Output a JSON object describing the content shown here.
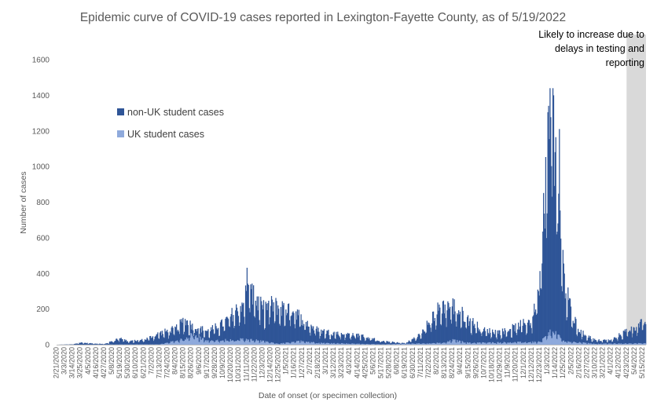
{
  "chart_data": {
    "type": "bar",
    "stacked": true,
    "title": "Epidemic curve of COVID-19 cases reported in Lexington-Fayette County, as of 5/19/2022",
    "xlabel": "Date of onset (or specimen collection)",
    "ylabel": "Number of cases",
    "ylim": [
      0,
      1600
    ],
    "yticks": [
      0,
      200,
      400,
      600,
      800,
      1000,
      1200,
      1400,
      1600
    ],
    "grid": false,
    "legend_position": "upper-left",
    "x_range": [
      "2/21/2020",
      "5/19/2022"
    ],
    "x_tick_labels": [
      "2/21/2020",
      "3/3/2020",
      "3/14/2020",
      "3/25/2020",
      "4/5/2020",
      "4/16/2020",
      "4/27/2020",
      "5/8/2020",
      "5/19/2020",
      "5/30/2020",
      "6/10/2020",
      "6/21/2020",
      "7/2/2020",
      "7/13/2020",
      "7/24/2020",
      "8/4/2020",
      "8/15/2020",
      "8/26/2020",
      "9/6/2020",
      "9/17/2020",
      "9/28/2020",
      "10/9/2020",
      "10/20/2020",
      "10/31/2020",
      "11/11/2020",
      "11/22/2020",
      "12/3/2020",
      "12/14/2020",
      "12/25/2020",
      "1/5/2021",
      "1/16/2021",
      "1/27/2021",
      "2/7/2021",
      "2/18/2021",
      "3/1/2021",
      "3/12/2021",
      "3/23/2021",
      "4/3/2021",
      "4/14/2021",
      "4/25/2021",
      "5/6/2021",
      "5/17/2021",
      "5/28/2021",
      "6/8/2021",
      "6/19/2021",
      "6/30/2021",
      "7/11/2021",
      "7/22/2021",
      "8/2/2021",
      "8/13/2021",
      "8/24/2021",
      "9/4/2021",
      "9/15/2021",
      "9/26/2021",
      "10/7/2021",
      "10/18/2021",
      "10/29/2021",
      "11/9/2021",
      "11/20/2021",
      "12/1/2021",
      "12/12/2021",
      "12/23/2021",
      "1/3/2022",
      "1/14/2022",
      "1/25/2022",
      "2/5/2022",
      "2/16/2022",
      "2/27/2022",
      "3/10/2022",
      "3/21/2022",
      "4/1/2022",
      "4/12/2022",
      "4/23/2022",
      "5/4/2022",
      "5/15/2022"
    ],
    "series": [
      {
        "name": "non-UK student cases",
        "color": "#2f5597",
        "profile": [
          {
            "date": "2/21/2020",
            "total": 0
          },
          {
            "date": "3/14/2020",
            "total": 2
          },
          {
            "date": "3/25/2020",
            "total": 12
          },
          {
            "date": "4/5/2020",
            "total": 8
          },
          {
            "date": "4/27/2020",
            "total": 4
          },
          {
            "date": "5/8/2020",
            "total": 20
          },
          {
            "date": "5/19/2020",
            "total": 40
          },
          {
            "date": "5/30/2020",
            "total": 18
          },
          {
            "date": "6/21/2020",
            "total": 28
          },
          {
            "date": "7/13/2020",
            "total": 65
          },
          {
            "date": "8/4/2020",
            "total": 90
          },
          {
            "date": "8/15/2020",
            "total": 140
          },
          {
            "date": "8/26/2020",
            "total": 110
          },
          {
            "date": "9/17/2020",
            "total": 75
          },
          {
            "date": "10/9/2020",
            "total": 120
          },
          {
            "date": "10/31/2020",
            "total": 210
          },
          {
            "date": "11/11/2020",
            "total": 300
          },
          {
            "date": "11/22/2020",
            "total": 260
          },
          {
            "date": "12/3/2020",
            "total": 200
          },
          {
            "date": "12/14/2020",
            "total": 230
          },
          {
            "date": "12/25/2020",
            "total": 210
          },
          {
            "date": "1/16/2021",
            "total": 200
          },
          {
            "date": "1/27/2021",
            "total": 140
          },
          {
            "date": "2/18/2021",
            "total": 80
          },
          {
            "date": "3/12/2021",
            "total": 65
          },
          {
            "date": "4/14/2021",
            "total": 55
          },
          {
            "date": "5/17/2021",
            "total": 20
          },
          {
            "date": "6/19/2021",
            "total": 8
          },
          {
            "date": "7/11/2021",
            "total": 60
          },
          {
            "date": "7/22/2021",
            "total": 130
          },
          {
            "date": "8/2/2021",
            "total": 190
          },
          {
            "date": "8/13/2021",
            "total": 230
          },
          {
            "date": "8/24/2021",
            "total": 220
          },
          {
            "date": "9/4/2021",
            "total": 180
          },
          {
            "date": "9/15/2021",
            "total": 140
          },
          {
            "date": "10/7/2021",
            "total": 80
          },
          {
            "date": "10/29/2021",
            "total": 70
          },
          {
            "date": "11/20/2021",
            "total": 100
          },
          {
            "date": "12/12/2021",
            "total": 140
          },
          {
            "date": "12/23/2021",
            "total": 350
          },
          {
            "date": "1/3/2022",
            "total": 1150
          },
          {
            "date": "1/10/2022",
            "total": 1300
          },
          {
            "date": "1/14/2022",
            "total": 1050
          },
          {
            "date": "1/25/2022",
            "total": 380
          },
          {
            "date": "2/5/2022",
            "total": 170
          },
          {
            "date": "2/16/2022",
            "total": 75
          },
          {
            "date": "3/10/2022",
            "total": 25
          },
          {
            "date": "4/1/2022",
            "total": 25
          },
          {
            "date": "4/23/2022",
            "total": 80
          },
          {
            "date": "5/19/2022",
            "total": 130
          }
        ]
      },
      {
        "name": "UK student cases",
        "color": "#8faadc",
        "profile": [
          {
            "date": "2/21/2020",
            "value": 0
          },
          {
            "date": "7/13/2020",
            "value": 2
          },
          {
            "date": "8/15/2020",
            "value": 30
          },
          {
            "date": "8/26/2020",
            "value": 55
          },
          {
            "date": "9/17/2020",
            "value": 20
          },
          {
            "date": "10/31/2020",
            "value": 30
          },
          {
            "date": "11/22/2020",
            "value": 25
          },
          {
            "date": "12/25/2020",
            "value": 5
          },
          {
            "date": "1/27/2021",
            "value": 20
          },
          {
            "date": "2/18/2021",
            "value": 10
          },
          {
            "date": "5/17/2021",
            "value": 2
          },
          {
            "date": "8/13/2021",
            "value": 10
          },
          {
            "date": "8/24/2021",
            "value": 25
          },
          {
            "date": "9/15/2021",
            "value": 10
          },
          {
            "date": "12/23/2021",
            "value": 15
          },
          {
            "date": "1/10/2022",
            "value": 80
          },
          {
            "date": "1/25/2022",
            "value": 20
          },
          {
            "date": "3/10/2022",
            "value": 5
          },
          {
            "date": "5/19/2022",
            "value": 8
          }
        ]
      }
    ],
    "annotation": {
      "text_lines": [
        "Likely to increase due to",
        "delays in testing and",
        "reporting"
      ],
      "range": [
        "4/23/2022",
        "5/19/2022"
      ],
      "shade_color": "#d9d9d9"
    }
  }
}
